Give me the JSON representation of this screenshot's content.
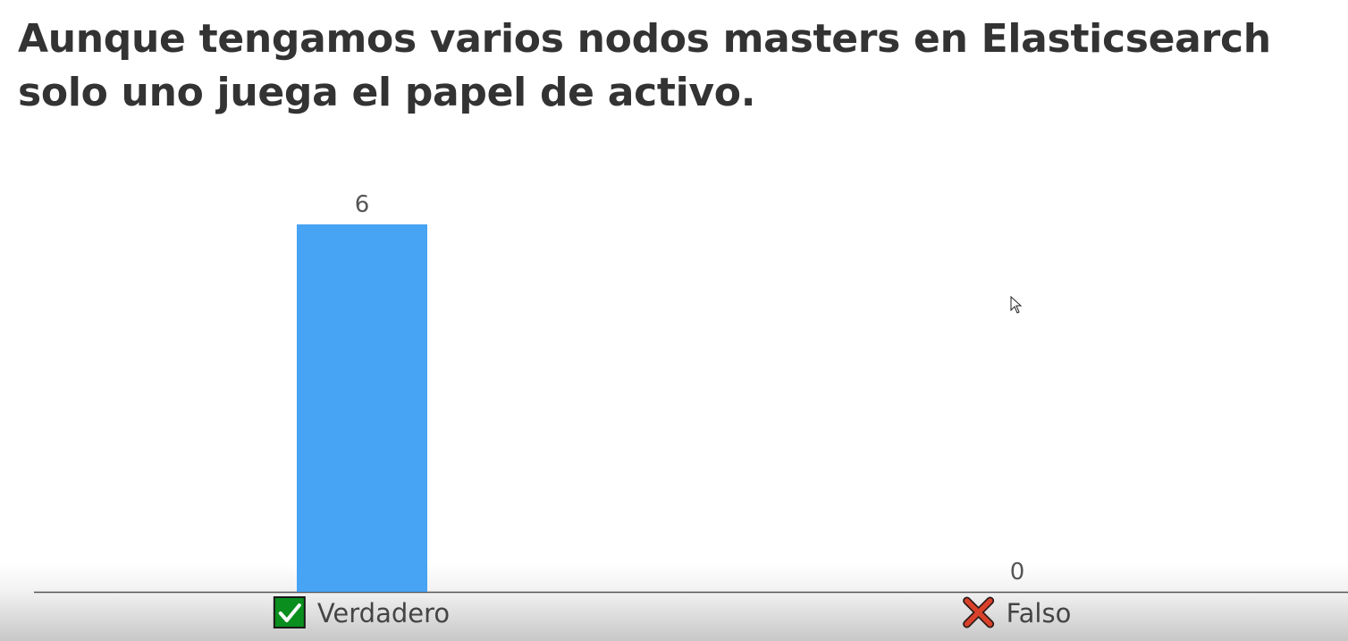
{
  "question": {
    "text": "Aunque tengamos varios nodos masters en Elasticsearch solo uno juega el papel de activo."
  },
  "chart_data": {
    "type": "bar",
    "title": "",
    "xlabel": "",
    "ylabel": "",
    "categories": [
      "Verdadero",
      "Falso"
    ],
    "values": [
      6,
      0
    ],
    "ylim": [
      0,
      6
    ],
    "grid": false,
    "bar_color": "#47a3f3",
    "category_icons": [
      "check-icon",
      "cross-icon"
    ]
  },
  "colors": {
    "check_icon_bg": "#0a8f1e",
    "cross_icon": "#d9412a",
    "axis_line": "#555555",
    "title_text": "#333333"
  }
}
